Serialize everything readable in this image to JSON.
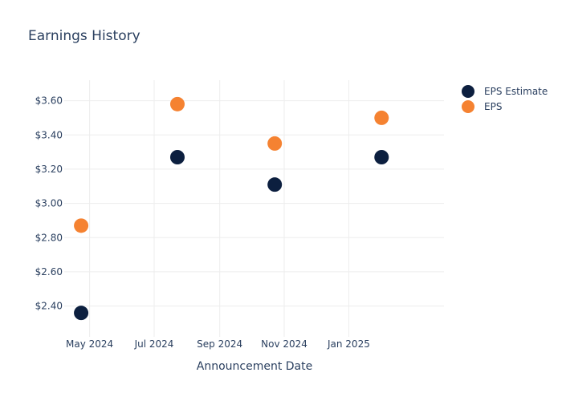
{
  "chart_data": {
    "type": "scatter",
    "title": "Earnings History",
    "xlabel": "Announcement Date",
    "ylabel": "",
    "x_type": "date",
    "xlim": [
      "2024-04-07",
      "2025-04-01"
    ],
    "ylim": [
      2.22,
      3.72
    ],
    "x_ticks": [
      {
        "date": "2024-05-01",
        "label": "May 2024"
      },
      {
        "date": "2024-07-01",
        "label": "Jul 2024"
      },
      {
        "date": "2024-09-01",
        "label": "Sep 2024"
      },
      {
        "date": "2024-11-01",
        "label": "Nov 2024"
      },
      {
        "date": "2025-01-01",
        "label": "Jan 2025"
      }
    ],
    "y_ticks": [
      {
        "value": 2.4,
        "label": "$2.40"
      },
      {
        "value": 2.6,
        "label": "$2.60"
      },
      {
        "value": 2.8,
        "label": "$2.80"
      },
      {
        "value": 3.0,
        "label": "$3.00"
      },
      {
        "value": 3.2,
        "label": "$3.20"
      },
      {
        "value": 3.4,
        "label": "$3.40"
      },
      {
        "value": 3.6,
        "label": "$3.60"
      }
    ],
    "grid": true,
    "legend_position": "top-right",
    "series": [
      {
        "name": "EPS Estimate",
        "color": "#0c1f3f",
        "points": [
          {
            "x": "2024-04-23",
            "y": 2.36
          },
          {
            "x": "2024-07-23",
            "y": 3.27
          },
          {
            "x": "2024-10-23",
            "y": 3.11
          },
          {
            "x": "2025-02-01",
            "y": 3.27
          }
        ]
      },
      {
        "name": "EPS",
        "color": "#f58231",
        "points": [
          {
            "x": "2024-04-23",
            "y": 2.87
          },
          {
            "x": "2024-07-23",
            "y": 3.58
          },
          {
            "x": "2024-10-23",
            "y": 3.35
          },
          {
            "x": "2025-02-01",
            "y": 3.5
          }
        ]
      }
    ]
  }
}
